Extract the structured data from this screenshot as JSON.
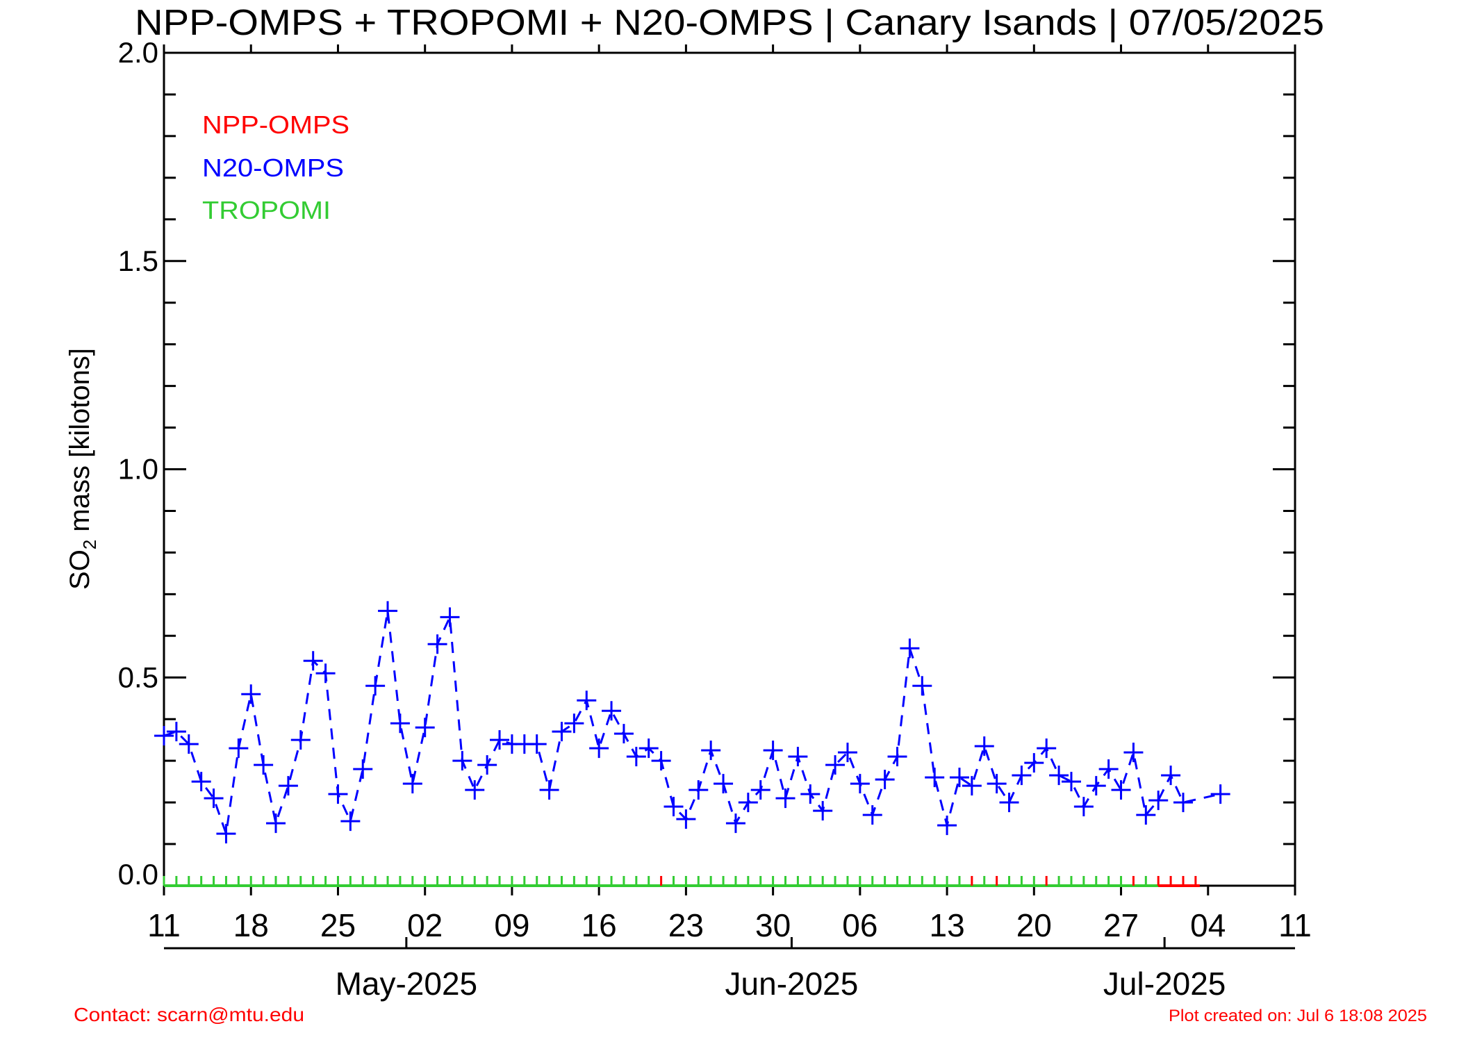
{
  "chart_data": {
    "type": "line",
    "title": "NPP-OMPS + TROPOMI + N20-OMPS | Canary Isands | 07/05/2025",
    "xlabel": "",
    "ylabel_main": "SO",
    "ylabel_sub": "2",
    "ylabel_rest": " mass [kilotons]",
    "ylim": [
      0,
      2.0
    ],
    "xlim": [
      "2025-04-11",
      "2025-07-11"
    ],
    "y_ticks": [
      "0.0",
      "0.5",
      "1.0",
      "1.5",
      "2.0"
    ],
    "x_tick_labels": [
      {
        "date": "2025-04-11",
        "label": "11"
      },
      {
        "date": "2025-04-18",
        "label": "18"
      },
      {
        "date": "2025-04-25",
        "label": "25"
      },
      {
        "date": "2025-05-02",
        "label": "02"
      },
      {
        "date": "2025-05-09",
        "label": "09"
      },
      {
        "date": "2025-05-16",
        "label": "16"
      },
      {
        "date": "2025-05-23",
        "label": "23"
      },
      {
        "date": "2025-05-30",
        "label": "30"
      },
      {
        "date": "2025-06-06",
        "label": "06"
      },
      {
        "date": "2025-06-13",
        "label": "13"
      },
      {
        "date": "2025-06-20",
        "label": "20"
      },
      {
        "date": "2025-06-27",
        "label": "27"
      },
      {
        "date": "2025-07-04",
        "label": "04"
      },
      {
        "date": "2025-07-11",
        "label": "11"
      }
    ],
    "month_labels": [
      {
        "date": "2025-05-01",
        "label": "May-2025"
      },
      {
        "date": "2025-06-01",
        "label": "Jun-2025"
      },
      {
        "date": "2025-07-01",
        "label": "Jul-2025"
      }
    ],
    "grid": false,
    "legend_position": "top-left",
    "legend": [
      {
        "name": "NPP-OMPS",
        "color": "#ff0000"
      },
      {
        "name": "N20-OMPS",
        "color": "#0000ff"
      },
      {
        "name": "TROPOMI",
        "color": "#33cc33"
      }
    ],
    "series": [
      {
        "name": "N20-OMPS",
        "color": "#0000ff",
        "marker": "plus",
        "line": "dashed",
        "points": [
          [
            "2025-04-11",
            0.36
          ],
          [
            "2025-04-12",
            0.37
          ],
          [
            "2025-04-13",
            0.34
          ],
          [
            "2025-04-14",
            0.25
          ],
          [
            "2025-04-15",
            0.21
          ],
          [
            "2025-04-16",
            0.125
          ],
          [
            "2025-04-17",
            0.33
          ],
          [
            "2025-04-18",
            0.46
          ],
          [
            "2025-04-19",
            0.29
          ],
          [
            "2025-04-20",
            0.15
          ],
          [
            "2025-04-21",
            0.24
          ],
          [
            "2025-04-22",
            0.35
          ],
          [
            "2025-04-23",
            0.54
          ],
          [
            "2025-04-24",
            0.51
          ],
          [
            "2025-04-25",
            0.22
          ],
          [
            "2025-04-26",
            0.155
          ],
          [
            "2025-04-27",
            0.28
          ],
          [
            "2025-04-28",
            0.48
          ],
          [
            "2025-04-29",
            0.66
          ],
          [
            "2025-04-30",
            0.39
          ],
          [
            "2025-05-01",
            0.245
          ],
          [
            "2025-05-02",
            0.38
          ],
          [
            "2025-05-03",
            0.58
          ],
          [
            "2025-05-04",
            0.645
          ],
          [
            "2025-05-05",
            0.3
          ],
          [
            "2025-05-06",
            0.23
          ],
          [
            "2025-05-07",
            0.29
          ],
          [
            "2025-05-08",
            0.35
          ],
          [
            "2025-05-09",
            0.34
          ],
          [
            "2025-05-10",
            0.34
          ],
          [
            "2025-05-11",
            0.34
          ],
          [
            "2025-05-12",
            0.23
          ],
          [
            "2025-05-13",
            0.37
          ],
          [
            "2025-05-14",
            0.39
          ],
          [
            "2025-05-15",
            0.445
          ],
          [
            "2025-05-16",
            0.33
          ],
          [
            "2025-05-17",
            0.42
          ],
          [
            "2025-05-18",
            0.365
          ],
          [
            "2025-05-19",
            0.31
          ],
          [
            "2025-05-20",
            0.33
          ],
          [
            "2025-05-21",
            0.3
          ],
          [
            "2025-05-22",
            0.19
          ],
          [
            "2025-05-23",
            0.16
          ],
          [
            "2025-05-24",
            0.23
          ],
          [
            "2025-05-25",
            0.325
          ],
          [
            "2025-05-26",
            0.245
          ],
          [
            "2025-05-27",
            0.15
          ],
          [
            "2025-05-28",
            0.2
          ],
          [
            "2025-05-29",
            0.23
          ],
          [
            "2025-05-30",
            0.325
          ],
          [
            "2025-05-31",
            0.21
          ],
          [
            "2025-06-01",
            0.31
          ],
          [
            "2025-06-02",
            0.22
          ],
          [
            "2025-06-03",
            0.18
          ],
          [
            "2025-06-04",
            0.29
          ],
          [
            "2025-06-05",
            0.32
          ],
          [
            "2025-06-06",
            0.245
          ],
          [
            "2025-06-07",
            0.17
          ],
          [
            "2025-06-08",
            0.255
          ],
          [
            "2025-06-09",
            0.31
          ],
          [
            "2025-06-10",
            0.57
          ],
          [
            "2025-06-11",
            0.48
          ],
          [
            "2025-06-12",
            0.26
          ],
          [
            "2025-06-13",
            0.145
          ],
          [
            "2025-06-14",
            0.26
          ],
          [
            "2025-06-15",
            0.24
          ],
          [
            "2025-06-16",
            0.335
          ],
          [
            "2025-06-17",
            0.245
          ],
          [
            "2025-06-18",
            0.2
          ],
          [
            "2025-06-19",
            0.265
          ],
          [
            "2025-06-20",
            0.295
          ],
          [
            "2025-06-21",
            0.33
          ],
          [
            "2025-06-22",
            0.265
          ],
          [
            "2025-06-23",
            0.25
          ],
          [
            "2025-06-24",
            0.19
          ],
          [
            "2025-06-25",
            0.24
          ],
          [
            "2025-06-26",
            0.28
          ],
          [
            "2025-06-27",
            0.23
          ],
          [
            "2025-06-28",
            0.32
          ],
          [
            "2025-06-29",
            0.17
          ],
          [
            "2025-06-30",
            0.205
          ],
          [
            "2025-07-01",
            0.265
          ],
          [
            "2025-07-02",
            0.2
          ],
          [
            "2025-07-05",
            0.22
          ]
        ]
      }
    ],
    "coverage_ticks": {
      "first_date": "2025-04-11",
      "last_date": "2025-07-03",
      "default_color": "#33cc33",
      "red_color": "#ff0000",
      "red_dates": [
        "2025-05-21",
        "2025-06-15",
        "2025-06-17",
        "2025-06-21",
        "2025-06-28",
        "2025-06-30",
        "2025-07-01",
        "2025-07-02",
        "2025-07-03"
      ],
      "red_baseline_from": "2025-06-30"
    }
  },
  "footer": {
    "contact": "Contact: scarn@mtu.edu",
    "created": "Plot created on: Jul  6 18:08 2025"
  }
}
